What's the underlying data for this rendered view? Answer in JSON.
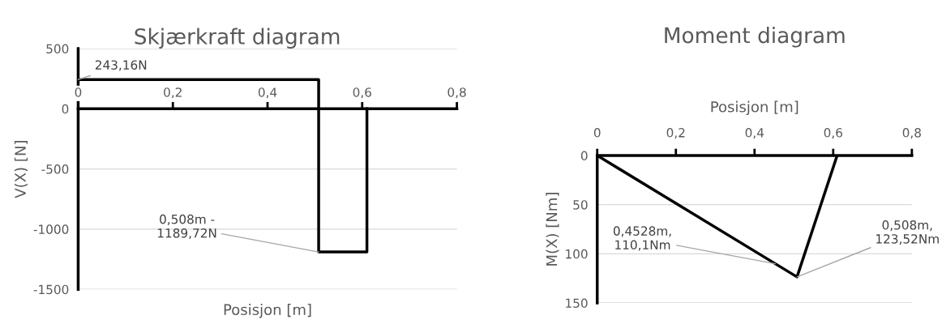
{
  "chart_data": [
    {
      "type": "line",
      "title": "Skjærkraft diagram",
      "xlabel": "Posisjon [m]",
      "ylabel": "V(X) [N]",
      "series": [
        {
          "color": "#000000",
          "x": [
            0,
            0.508,
            0.508,
            0.61,
            0.61
          ],
          "values": [
            243.16,
            243.16,
            -1189.72,
            -1189.72,
            0
          ]
        }
      ],
      "xlim": [
        0,
        0.8
      ],
      "xticks": [
        0,
        {
          "value": 0.2,
          "label": "0,2"
        },
        {
          "value": 0.4,
          "label": "0,4"
        },
        {
          "value": 0.6,
          "label": "0,6"
        },
        {
          "value": 0.8,
          "label": "0,8"
        }
      ],
      "ylim": [
        -1500,
        500
      ],
      "yticks": [
        -1500,
        -1000,
        -500,
        0,
        500
      ],
      "grid": "y",
      "marker": "none",
      "line_style": "solid",
      "annotations": [
        {
          "text": "243,16N",
          "x": 0,
          "y": 243.16
        },
        {
          "text": "0,508m -\n1189,72N",
          "x": 0.508,
          "y": -1189.72
        }
      ]
    },
    {
      "type": "line",
      "title": "Moment diagram",
      "xlabel": "Posisjon [m]",
      "ylabel": "M(X) [Nm]",
      "series": [
        {
          "color": "#000000",
          "x": [
            0,
            0.508,
            0.61
          ],
          "values": [
            0,
            123.52,
            0
          ]
        }
      ],
      "xlim": [
        0,
        0.8
      ],
      "xticks": [
        0,
        {
          "value": 0.2,
          "label": "0,2"
        },
        {
          "value": 0.4,
          "label": "0,4"
        },
        {
          "value": 0.6,
          "label": "0,6"
        },
        {
          "value": 0.8,
          "label": "0,8"
        }
      ],
      "ylim": [
        150,
        0
      ],
      "yticks": [
        0,
        50,
        100,
        150
      ],
      "grid": "y",
      "marker": "none",
      "line_style": "solid",
      "annotations": [
        {
          "text": "0,4528m,\n110,1Nm",
          "x": 0.4528,
          "y": 110.1
        },
        {
          "text": "0,508m,\n123,52Nm",
          "x": 0.508,
          "y": 123.52
        }
      ]
    }
  ]
}
